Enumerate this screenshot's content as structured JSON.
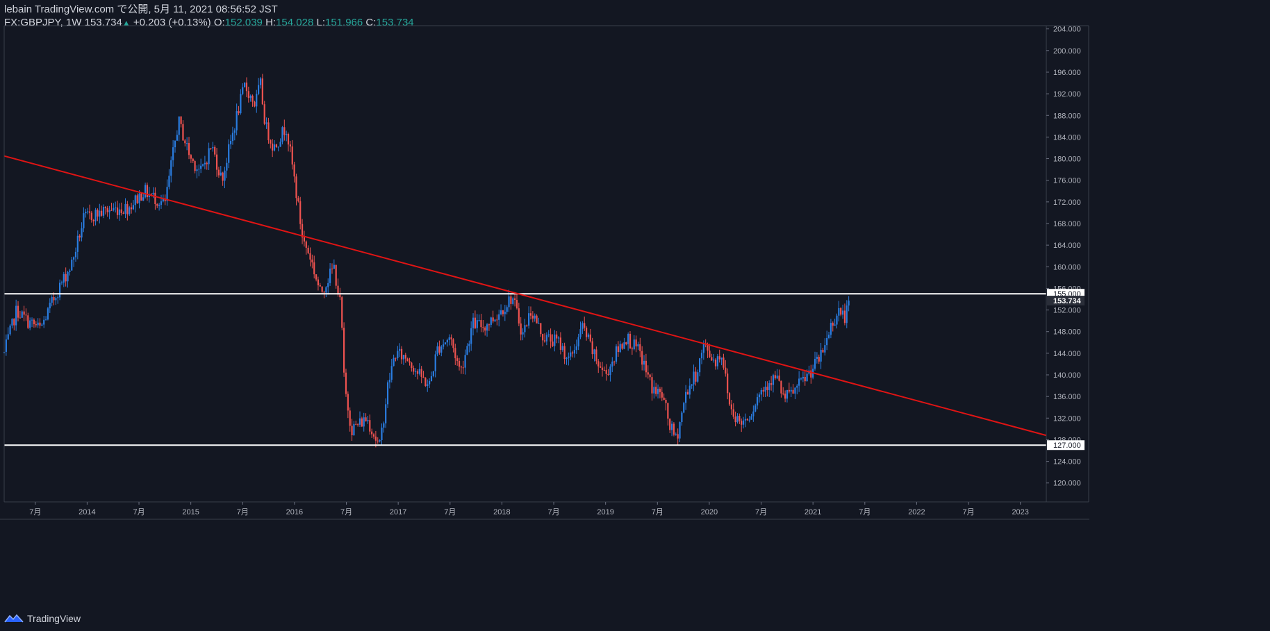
{
  "header": {
    "publish_line": "lebain TradingView.com で公開, 5月 11, 2021 08:56:52 JST",
    "symbol": "FX:GBPJPY, 1W",
    "last": "153.734",
    "change": "+0.203 (+0.13%)",
    "o_label": "O:",
    "o_value": "152.039",
    "h_label": "H:",
    "h_value": "154.028",
    "l_label": "L:",
    "l_value": "151.966",
    "c_label": "C:",
    "c_value": "153.734"
  },
  "footer": {
    "brand": "TradingView",
    "logo_icon": "tradingview-logo-icon"
  },
  "colors": {
    "background": "#131722",
    "up": "#2a7de1",
    "down": "#ef5350",
    "trendline": "#e01414",
    "hline": "#ffffff",
    "grid_border": "#3a3f4b",
    "accent_green": "#26a69a"
  },
  "chart_data": {
    "type": "candlestick",
    "symbol": "FX:GBPJPY",
    "timeframe": "1W",
    "y_ticks": [
      "120.000",
      "124.000",
      "128.000",
      "132.000",
      "136.000",
      "140.000",
      "144.000",
      "148.000",
      "152.000",
      "156.000",
      "160.000",
      "164.000",
      "168.000",
      "172.000",
      "176.000",
      "180.000",
      "184.000",
      "188.000",
      "192.000",
      "196.000",
      "200.000",
      "204.000"
    ],
    "x_ticks": [
      {
        "t": 2013.5,
        "label": "7月"
      },
      {
        "t": 2014.0,
        "label": "2014"
      },
      {
        "t": 2014.5,
        "label": "7月"
      },
      {
        "t": 2015.0,
        "label": "2015"
      },
      {
        "t": 2015.5,
        "label": "7月"
      },
      {
        "t": 2016.0,
        "label": "2016"
      },
      {
        "t": 2016.5,
        "label": "7月"
      },
      {
        "t": 2017.0,
        "label": "2017"
      },
      {
        "t": 2017.5,
        "label": "7月"
      },
      {
        "t": 2018.0,
        "label": "2018"
      },
      {
        "t": 2018.5,
        "label": "7月"
      },
      {
        "t": 2019.0,
        "label": "2019"
      },
      {
        "t": 2019.5,
        "label": "7月"
      },
      {
        "t": 2020.0,
        "label": "2020"
      },
      {
        "t": 2020.5,
        "label": "7月"
      },
      {
        "t": 2021.0,
        "label": "2021"
      },
      {
        "t": 2021.5,
        "label": "7月"
      },
      {
        "t": 2022.0,
        "label": "2022"
      },
      {
        "t": 2022.5,
        "label": "7月"
      },
      {
        "t": 2023.0,
        "label": "2023"
      }
    ],
    "xlim": [
      2013.2,
      2023.25
    ],
    "ylim": [
      116.5,
      204.6
    ],
    "price_labels": [
      {
        "value": 155.0,
        "label": "155.000",
        "style": "white"
      },
      {
        "value": 153.734,
        "label": "153.734",
        "style": "current"
      },
      {
        "value": 127.0,
        "label": "127.000",
        "style": "white"
      }
    ],
    "horizontal_lines": [
      155.0,
      127.0
    ],
    "trendline": {
      "from": {
        "t": 2013.2,
        "v": 180.5
      },
      "to": {
        "t": 2023.25,
        "v": 128.8
      }
    },
    "anchors": [
      [
        2013.2,
        144.0
      ],
      [
        2013.32,
        152.0
      ],
      [
        2013.42,
        150.0
      ],
      [
        2013.55,
        148.5
      ],
      [
        2013.7,
        155.0
      ],
      [
        2013.85,
        160.5
      ],
      [
        2013.97,
        169.0
      ],
      [
        2014.2,
        170.5
      ],
      [
        2014.4,
        171.0
      ],
      [
        2014.55,
        174.0
      ],
      [
        2014.75,
        171.5
      ],
      [
        2014.88,
        187.0
      ],
      [
        2015.0,
        180.0
      ],
      [
        2015.1,
        177.5
      ],
      [
        2015.2,
        182.5
      ],
      [
        2015.3,
        176.0
      ],
      [
        2015.45,
        188.5
      ],
      [
        2015.52,
        193.5
      ],
      [
        2015.62,
        190.0
      ],
      [
        2015.67,
        194.0
      ],
      [
        2015.72,
        186.0
      ],
      [
        2015.8,
        182.0
      ],
      [
        2015.92,
        186.0
      ],
      [
        2016.0,
        176.0
      ],
      [
        2016.08,
        165.0
      ],
      [
        2016.15,
        162.0
      ],
      [
        2016.25,
        155.0
      ],
      [
        2016.38,
        160.0
      ],
      [
        2016.45,
        152.0
      ],
      [
        2016.48,
        138.0
      ],
      [
        2016.55,
        130.0
      ],
      [
        2016.7,
        132.0
      ],
      [
        2016.82,
        126.5
      ],
      [
        2016.9,
        138.0
      ],
      [
        2016.97,
        144.0
      ],
      [
        2017.1,
        143.0
      ],
      [
        2017.2,
        140.0
      ],
      [
        2017.3,
        138.0
      ],
      [
        2017.38,
        145.0
      ],
      [
        2017.5,
        147.0
      ],
      [
        2017.6,
        140.5
      ],
      [
        2017.72,
        149.5
      ],
      [
        2017.83,
        149.0
      ],
      [
        2017.95,
        151.0
      ],
      [
        2018.1,
        154.5
      ],
      [
        2018.2,
        147.5
      ],
      [
        2018.28,
        152.0
      ],
      [
        2018.4,
        147.0
      ],
      [
        2018.55,
        146.0
      ],
      [
        2018.65,
        142.5
      ],
      [
        2018.78,
        149.0
      ],
      [
        2018.9,
        143.0
      ],
      [
        2019.0,
        140.0
      ],
      [
        2019.1,
        144.0
      ],
      [
        2019.2,
        147.0
      ],
      [
        2019.33,
        144.0
      ],
      [
        2019.45,
        137.5
      ],
      [
        2019.55,
        136.0
      ],
      [
        2019.62,
        130.5
      ],
      [
        2019.68,
        128.0
      ],
      [
        2019.78,
        137.0
      ],
      [
        2019.87,
        140.0
      ],
      [
        2019.95,
        145.5
      ],
      [
        2020.05,
        142.5
      ],
      [
        2020.12,
        144.0
      ],
      [
        2020.2,
        134.0
      ],
      [
        2020.3,
        131.0
      ],
      [
        2020.4,
        133.0
      ],
      [
        2020.48,
        136.5
      ],
      [
        2020.58,
        139.0
      ],
      [
        2020.65,
        139.5
      ],
      [
        2020.72,
        135.5
      ],
      [
        2020.82,
        137.0
      ],
      [
        2020.97,
        140.5
      ],
      [
        2021.08,
        143.5
      ],
      [
        2021.17,
        149.0
      ],
      [
        2021.25,
        152.0
      ],
      [
        2021.3,
        150.5
      ],
      [
        2021.36,
        153.7
      ]
    ]
  }
}
